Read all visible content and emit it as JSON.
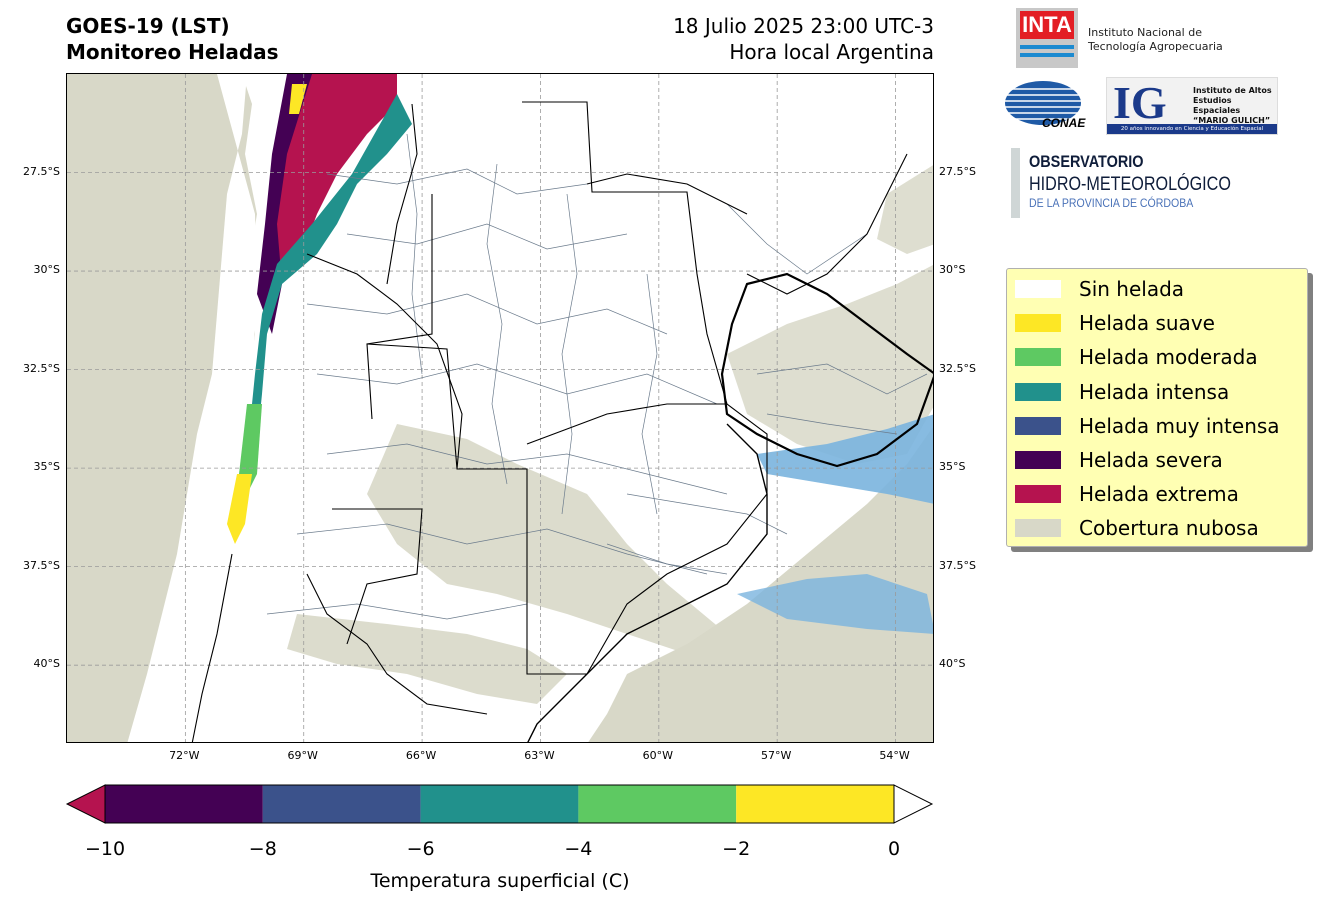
{
  "title": {
    "line1": "GOES-19 (LST)",
    "line2": "Monitoreo Heladas"
  },
  "datetime": {
    "line1": "18 Julio 2025 23:00 UTC-3",
    "line2": "Hora local Argentina"
  },
  "map": {
    "extent_lon": [
      -75,
      -53
    ],
    "extent_lat": [
      -42,
      -25
    ],
    "lat_ticks": [
      "27.5°S",
      "30°S",
      "32.5°S",
      "35°S",
      "37.5°S",
      "40°S"
    ],
    "lat_values": [
      -27.5,
      -30,
      -32.5,
      -35,
      -37.5,
      -40
    ],
    "lon_ticks": [
      "72°W",
      "69°W",
      "66°W",
      "63°W",
      "60°W",
      "57°W",
      "54°W"
    ],
    "lon_values": [
      -72,
      -69,
      -66,
      -63,
      -60,
      -57,
      -54
    ],
    "gridlines": true,
    "colors": {
      "cloud": "#d8d8c8",
      "water": "#7ab4de",
      "land": "#ffffff",
      "province_border": "#000000",
      "department_border": "#6b7b8c"
    }
  },
  "colorbar": {
    "ticks": [
      "−10",
      "−8",
      "−6",
      "−4",
      "−2",
      "0"
    ],
    "tick_values": [
      -10,
      -8,
      -6,
      -4,
      -2,
      0
    ],
    "label": "Temperatura superficial (C)",
    "segments": [
      "#440154",
      "#3b528b",
      "#21918c",
      "#5ec962",
      "#fde725"
    ],
    "under_color": "#b5134f",
    "over_color": "#ffffff"
  },
  "legend": {
    "placement": "right",
    "items": [
      {
        "label": "Sin helada",
        "color": "#ffffff"
      },
      {
        "label": "Helada suave",
        "color": "#fde725"
      },
      {
        "label": "Helada moderada",
        "color": "#5ec962"
      },
      {
        "label": "Helada intensa",
        "color": "#21918c"
      },
      {
        "label": "Helada muy intensa",
        "color": "#3b528b"
      },
      {
        "label": "Helada severa",
        "color": "#440154"
      },
      {
        "label": "Helada extrema",
        "color": "#b5134f"
      },
      {
        "label": "Cobertura nubosa",
        "color": "#d8d8c8"
      }
    ]
  },
  "logos": {
    "inta": {
      "mark": "INTA",
      "line1": "Instituto Nacional de",
      "line2": "Tecnología Agropecuaria"
    },
    "conae": {
      "mark": "CONAE"
    },
    "ig": {
      "mark": "IG",
      "line1": "Instituto de Altos",
      "line2": "Estudios Espaciales",
      "line3": "“MARIO GULICH”",
      "bar": "20 años innovando en Ciencia y Educación Espacial"
    },
    "observatorio": {
      "line1": "OBSERVATORIO",
      "line2": "HIDRO-METEOROLÓGICO",
      "line3": "DE LA PROVINCIA DE CÓRDOBA"
    }
  }
}
